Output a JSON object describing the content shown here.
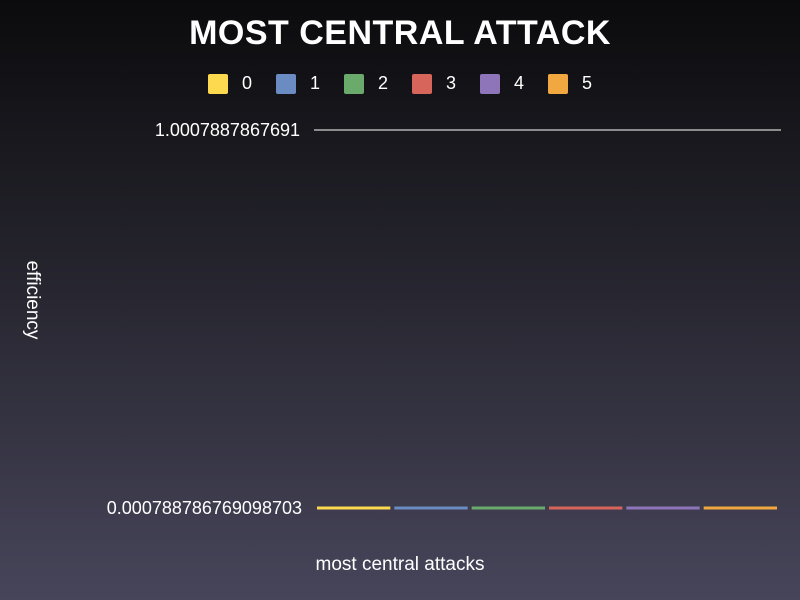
{
  "chart_data": {
    "type": "bar",
    "title": "MOST CENTRAL ATTACK",
    "xlabel": "most central attacks",
    "ylabel": "efficiency",
    "categories": [
      ""
    ],
    "series": [
      {
        "name": "0",
        "color": "#fdd94f",
        "values": [
          0.000788786769098703
        ]
      },
      {
        "name": "1",
        "color": "#6b8cc3",
        "values": [
          0.000788786769098703
        ]
      },
      {
        "name": "2",
        "color": "#6aaa6a",
        "values": [
          0.000788786769098703
        ]
      },
      {
        "name": "3",
        "color": "#d7655c",
        "values": [
          0.000788786769098703
        ]
      },
      {
        "name": "4",
        "color": "#8e74b8",
        "values": [
          0.000788786769098703
        ]
      },
      {
        "name": "5",
        "color": "#f2a841",
        "values": [
          0.000788786769098703
        ]
      }
    ],
    "ylim": [
      0.000788786769098703,
      1.0007887867691
    ],
    "y_ticks": [
      "1.0007887867691",
      "0.000788786769098703"
    ],
    "legend_position": "top"
  }
}
